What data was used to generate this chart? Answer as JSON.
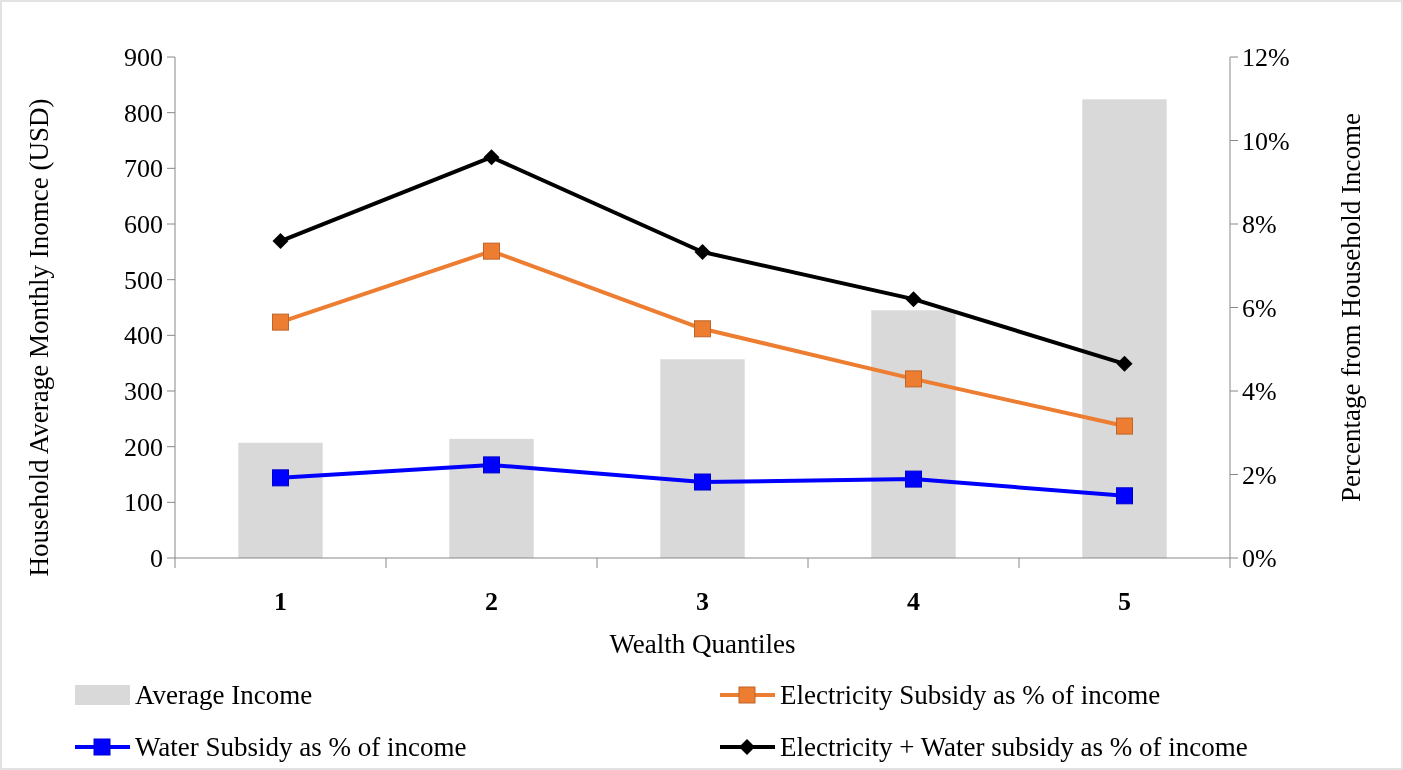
{
  "chart_data": {
    "type": "bar",
    "xlabel": "Wealth Quantiles",
    "ylabel": "Household Average  Monthly Inomce (USD)",
    "y2label": "Percentage from Household Income",
    "categories": [
      "1",
      "2",
      "3",
      "4",
      "5"
    ],
    "series": [
      {
        "name": "Average Income",
        "color": "#d9d9d9",
        "values": [
          207,
          214,
          357,
          445,
          824
        ]
      },
      {
        "name": "Electricity Subsidy as % of income",
        "type": "line",
        "axis": "y2",
        "color": "#ed7d31",
        "marker": "square",
        "values": [
          5.65,
          7.35,
          5.49,
          4.29,
          3.16
        ]
      },
      {
        "name": "Water Subsidy as % of income",
        "type": "line",
        "axis": "y2",
        "color": "#0000ff",
        "marker": "square",
        "values": [
          1.92,
          2.23,
          1.82,
          1.89,
          1.49
        ]
      },
      {
        "name": "Electricity + Water subsidy as % of income",
        "type": "line",
        "axis": "y2",
        "color": "#000000",
        "marker": "diamond",
        "values": [
          7.59,
          9.6,
          7.33,
          6.2,
          4.65
        ]
      }
    ],
    "ylim": [
      0,
      900
    ],
    "yticks": [
      0,
      100,
      200,
      300,
      400,
      500,
      600,
      700,
      800,
      900
    ],
    "y2lim": [
      0,
      12
    ],
    "y2ticks": [
      {
        "value": 0,
        "label": "0%"
      },
      {
        "value": 2,
        "label": "2%"
      },
      {
        "value": 4,
        "label": "4%"
      },
      {
        "value": 6,
        "label": "6%"
      },
      {
        "value": 8,
        "label": "8%"
      },
      {
        "value": 10,
        "label": "10%"
      },
      {
        "value": 12,
        "label": "12%"
      }
    ],
    "grid": false,
    "legend": "bottom"
  }
}
